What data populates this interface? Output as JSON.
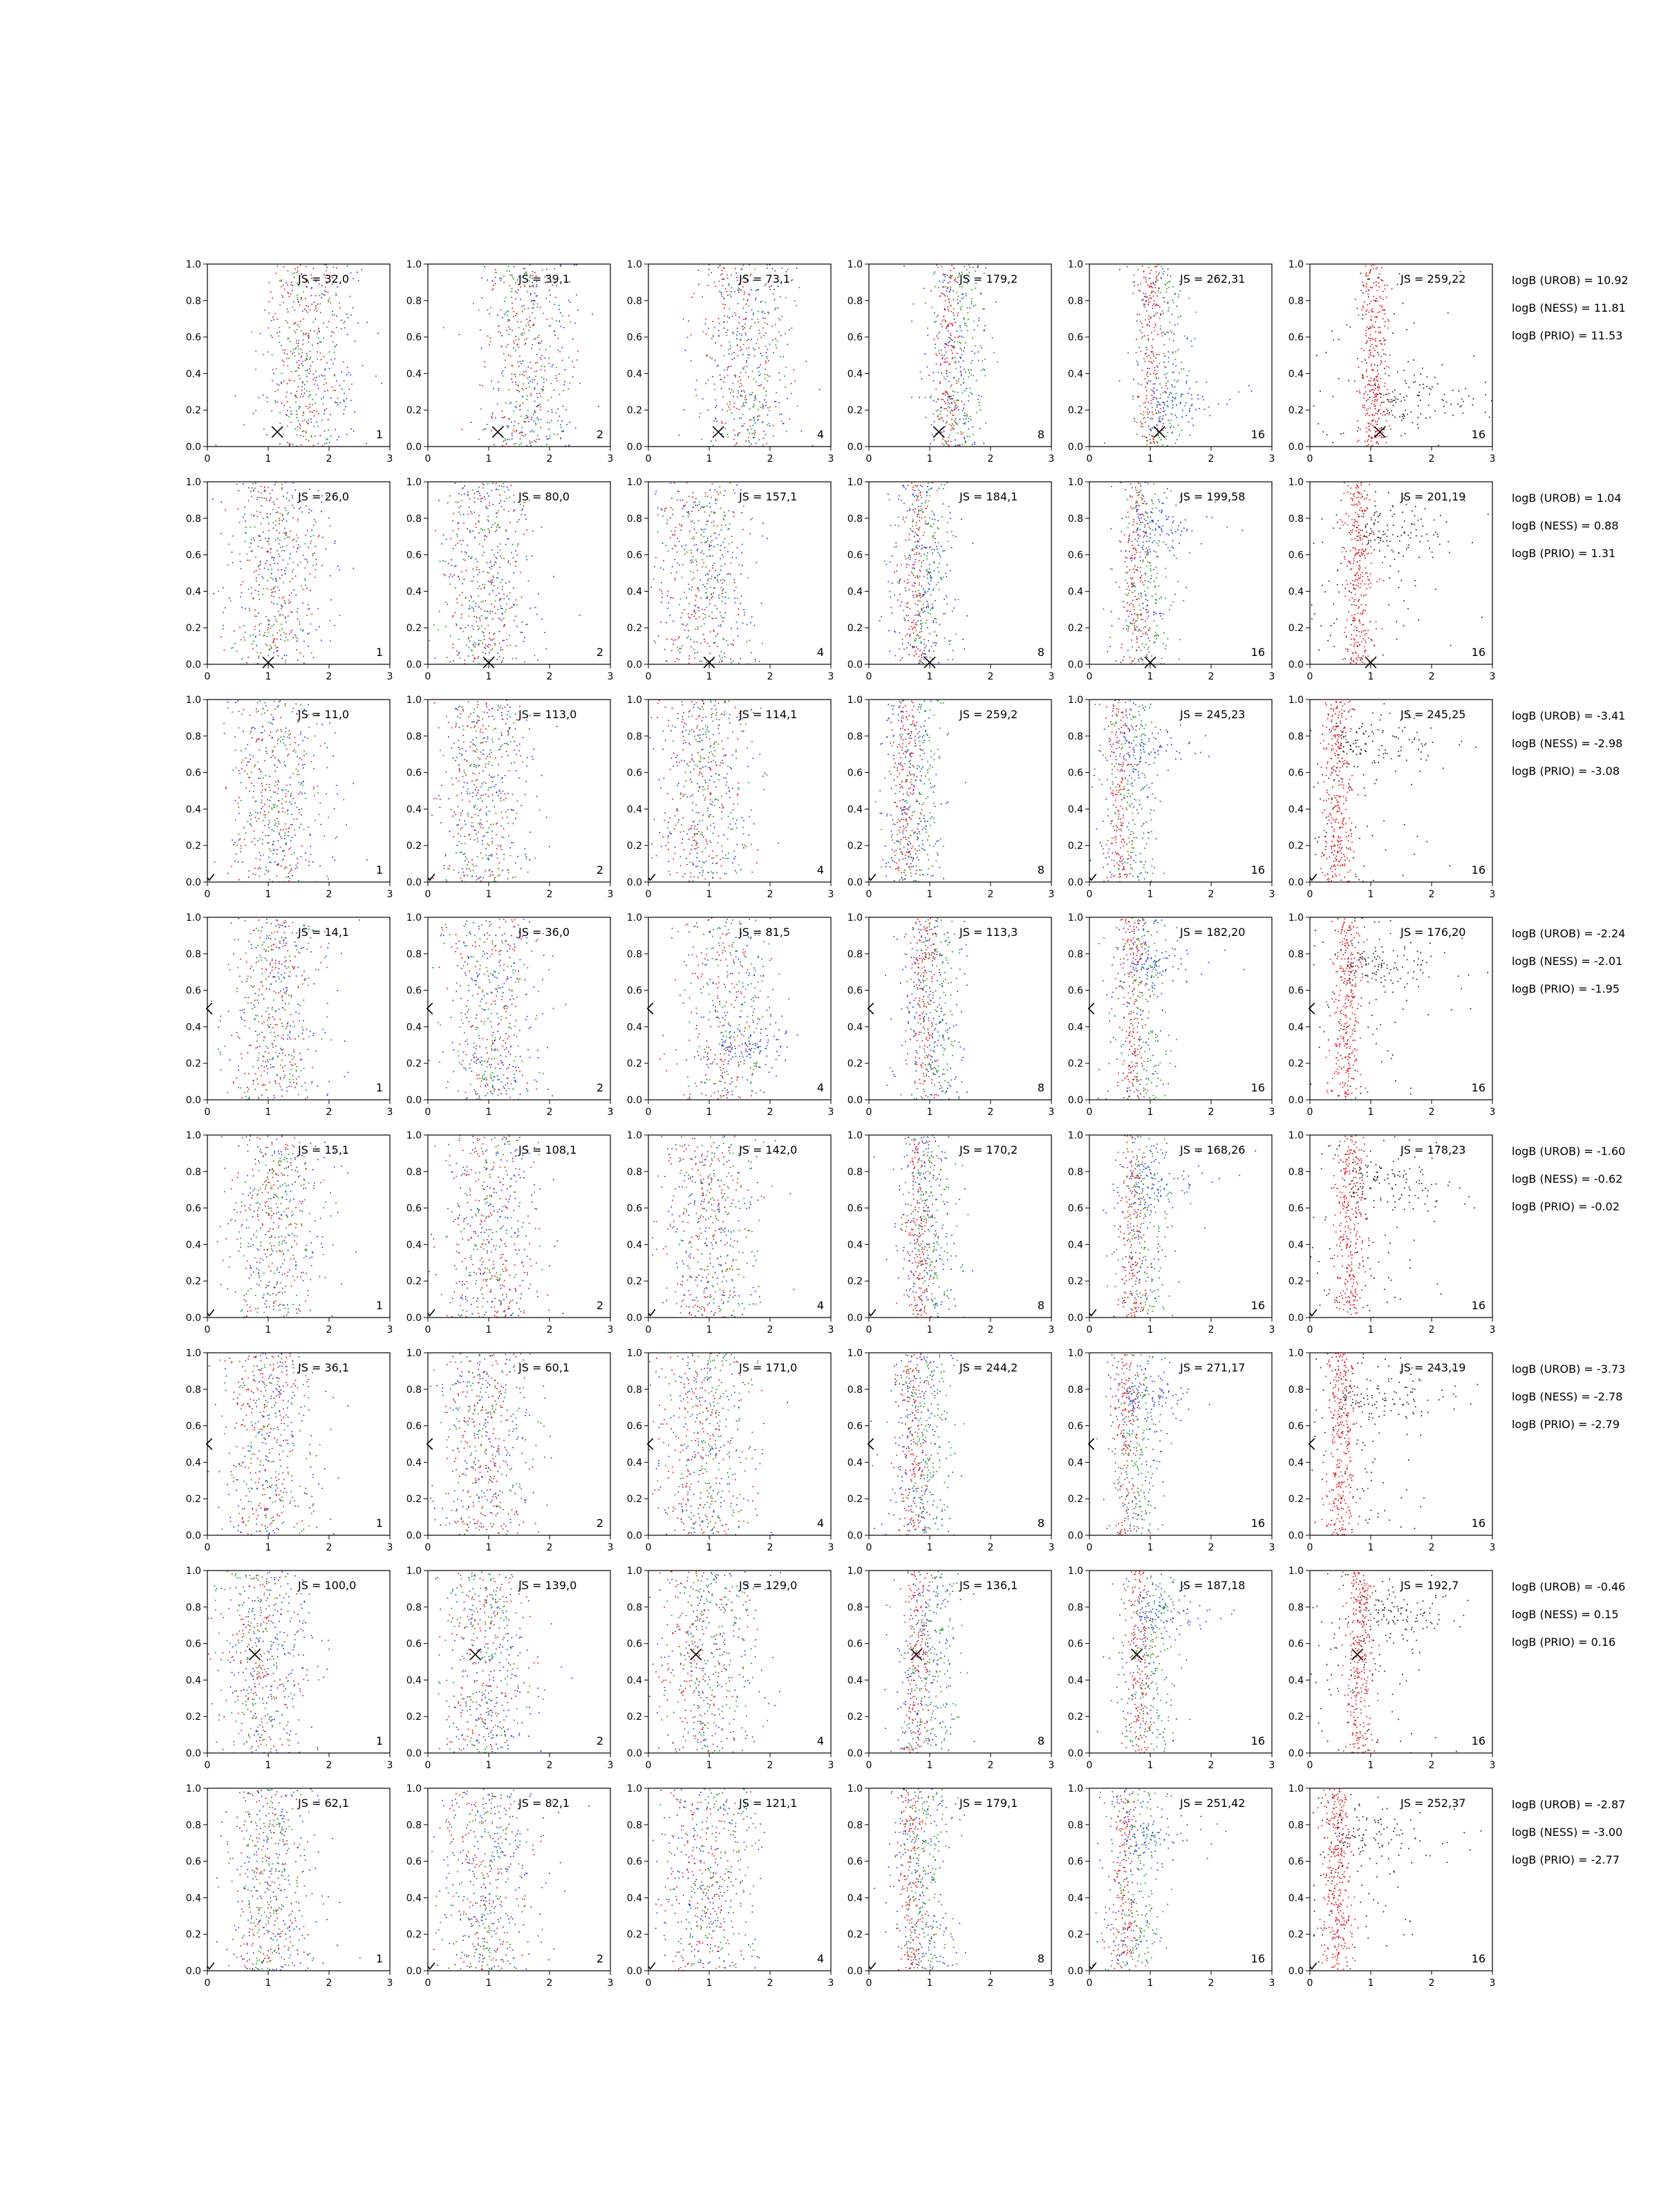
{
  "chart_data": {
    "type": "scatter",
    "grid_rows": 8,
    "grid_cols": 6,
    "xlim": [
      0,
      3
    ],
    "ylim": [
      0,
      1
    ],
    "xticks": [
      "0",
      "1",
      "2",
      "3"
    ],
    "yticks": [
      "0.0",
      "0.2",
      "0.4",
      "0.6",
      "0.8",
      "1.0"
    ],
    "grid": false,
    "col_corner_labels": [
      "1",
      "2",
      "4",
      "8",
      "16",
      "16"
    ],
    "series_colors": {
      "red": "#e8141e",
      "green": "#1a9a1a",
      "blue": "#1f3fe0",
      "black": "#202020"
    },
    "rows": [
      {
        "js": [
          "JS = 32,0",
          "JS = 39,1",
          "JS = 73,1",
          "JS = 179,2",
          "JS = 262,31",
          "JS = 259,22"
        ],
        "logB": [
          "logB (UROB) = 10.92",
          "logB (NESS) = 11.81",
          "logB (PRIO) = 11.53"
        ],
        "marker": {
          "x": 1.15,
          "y": 0.08,
          "symbol": "x"
        },
        "centers": [
          1.6,
          1.6,
          1.5,
          1.3,
          1.0,
          1.05
        ],
        "bands": [
          0,
          0,
          0,
          0,
          0.25,
          0.25
        ]
      },
      {
        "js": [
          "JS = 26,0",
          "JS = 80,0",
          "JS = 157,1",
          "JS = 184,1",
          "JS = 199,58",
          "JS = 201,19"
        ],
        "logB": [
          "logB (UROB) = 1.04",
          "logB (NESS) = 0.88",
          "logB (PRIO) = 1.31"
        ],
        "marker": {
          "x": 1.0,
          "y": 0.01,
          "symbol": "x"
        },
        "centers": [
          1.1,
          0.9,
          0.8,
          0.75,
          0.75,
          0.8
        ],
        "bands": [
          0,
          0,
          0,
          0,
          0.75,
          0.75
        ]
      },
      {
        "js": [
          "JS = 11,0",
          "JS = 113,0",
          "JS = 114,1",
          "JS = 259,2",
          "JS = 245,23",
          "JS = 245,25"
        ],
        "logB": [
          "logB (UROB) = -3.41",
          "logB (NESS) = -2.98",
          "logB (PRIO) = -3.08"
        ],
        "marker": {
          "x": 0.02,
          "y": 0.01,
          "symbol": "check"
        },
        "centers": [
          1.1,
          0.9,
          0.8,
          0.6,
          0.5,
          0.45
        ],
        "bands": [
          0,
          0,
          0,
          0,
          0.75,
          0.75
        ]
      },
      {
        "js": [
          "JS = 14,1",
          "JS = 36,0",
          "JS = 81,5",
          "JS = 113,3",
          "JS = 182,20",
          "JS = 176,20"
        ],
        "logB": [
          "logB (UROB) = -2.24",
          "logB (NESS) = -2.01",
          "logB (PRIO) = -1.95"
        ],
        "marker": {
          "x": 0.02,
          "y": 0.5,
          "symbol": "lt"
        },
        "centers": [
          1.1,
          1.0,
          1.2,
          0.9,
          0.7,
          0.6
        ],
        "bands": [
          0,
          0,
          0.3,
          0,
          0.75,
          0.75
        ]
      },
      {
        "js": [
          "JS = 15,1",
          "JS = 108,1",
          "JS = 142,0",
          "JS = 170,2",
          "JS = 168,26",
          "JS = 178,23"
        ],
        "logB": [
          "logB (UROB) = -1.60",
          "logB (NESS) = -0.62",
          "logB (PRIO) = -0.02"
        ],
        "marker": {
          "x": 0.02,
          "y": 0.01,
          "symbol": "check"
        },
        "centers": [
          1.1,
          1.0,
          0.9,
          0.8,
          0.7,
          0.65
        ],
        "bands": [
          0,
          0,
          0,
          0,
          0.75,
          0.75
        ]
      },
      {
        "js": [
          "JS = 36,1",
          "JS = 60,1",
          "JS = 171,0",
          "JS = 244,2",
          "JS = 271,17",
          "JS = 243,19"
        ],
        "logB": [
          "logB (UROB) = -3.73",
          "logB (NESS) = -2.78",
          "logB (PRIO) = -2.79"
        ],
        "marker": {
          "x": 0.02,
          "y": 0.5,
          "symbol": "lt"
        },
        "centers": [
          1.0,
          0.9,
          0.8,
          0.7,
          0.6,
          0.5
        ],
        "bands": [
          0,
          0,
          0,
          0,
          0.75,
          0.75
        ]
      },
      {
        "js": [
          "JS = 100,0",
          "JS = 139,0",
          "JS = 129,0",
          "JS = 136,1",
          "JS = 187,18",
          "JS = 192,7"
        ],
        "logB": [
          "logB (UROB) = -0.46",
          "logB (NESS) = 0.15",
          "logB (PRIO) = 0.16"
        ],
        "marker": {
          "x": 0.78,
          "y": 0.54,
          "symbol": "x"
        },
        "centers": [
          0.9,
          0.9,
          0.85,
          0.8,
          0.8,
          0.8
        ],
        "bands": [
          0,
          0,
          0,
          0,
          0.75,
          0.75
        ]
      },
      {
        "js": [
          "JS = 62,1",
          "JS = 82,1",
          "JS = 121,1",
          "JS = 179,1",
          "JS = 251,42",
          "JS = 252,37"
        ],
        "logB": [
          "logB (UROB) = -2.87",
          "logB (NESS) = -3.00",
          "logB (PRIO) = -2.77"
        ],
        "marker": {
          "x": 0.02,
          "y": 0.01,
          "symbol": "check"
        },
        "centers": [
          1.0,
          0.9,
          0.8,
          0.7,
          0.55,
          0.45
        ],
        "bands": [
          0,
          0,
          0,
          0,
          0.75,
          0.75
        ]
      }
    ]
  }
}
